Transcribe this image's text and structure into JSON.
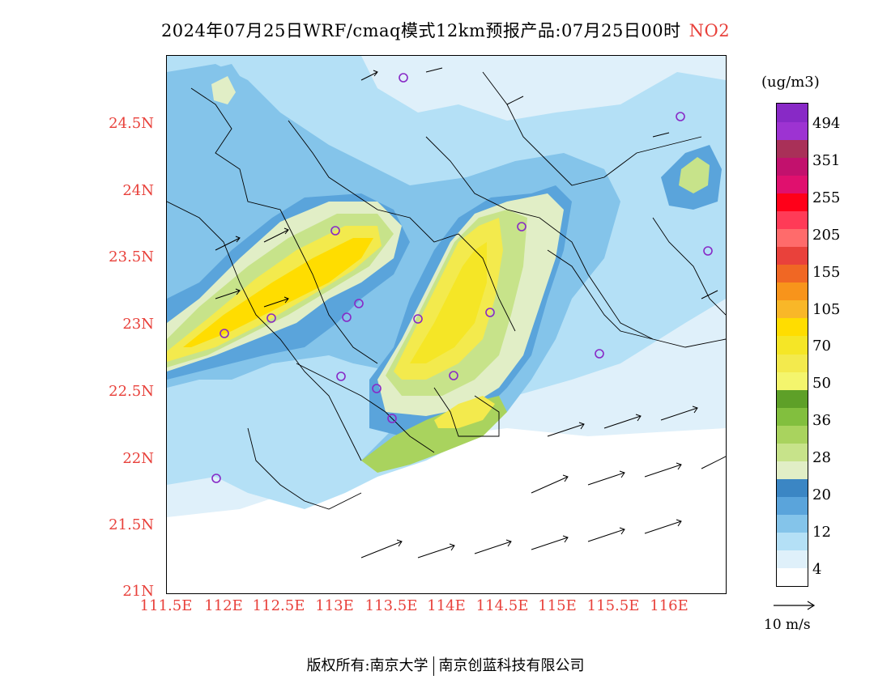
{
  "title": {
    "text": "2024年07月25日WRF/cmaq模式12km预报产品:07月25日00时",
    "pollutant": "NO2"
  },
  "axes": {
    "y_labels": [
      "24.5N",
      "24N",
      "23.5N",
      "23N",
      "22.5N",
      "22N",
      "21.5N",
      "21N"
    ],
    "x_labels": [
      "111.5E",
      "112E",
      "112.5E",
      "113E",
      "113.5E",
      "114E",
      "114.5E",
      "115E",
      "115.5E",
      "116E"
    ],
    "label_color": "#e8413b"
  },
  "colorbar": {
    "unit": "(ug/m3)",
    "labels": [
      "494",
      "351",
      "255",
      "205",
      "155",
      "105",
      "70",
      "50",
      "36",
      "28",
      "20",
      "12",
      "4"
    ],
    "colors": [
      "#ffffff",
      "#dff0fa",
      "#b4e0f6",
      "#84c4ea",
      "#5aa4db",
      "#3b86c4",
      "#e1eec6",
      "#c7e38a",
      "#a9d35e",
      "#82bf3e",
      "#5ea028",
      "#f4f56d",
      "#f3ea4d",
      "#f5e626",
      "#ffdd00",
      "#f9b728",
      "#f8941b",
      "#f06724",
      "#e9413b",
      "#ff6b6b",
      "#ff3b57",
      "#ff0019",
      "#e0106e",
      "#c2116d",
      "#a93058",
      "#9d33d2",
      "#8829c6"
    ]
  },
  "wind_key": {
    "label": "10 m/s"
  },
  "stations": "purple-circle-markers",
  "footer": {
    "left": "版权所有:南京大学",
    "right": "南京创蓝科技有限公司"
  }
}
